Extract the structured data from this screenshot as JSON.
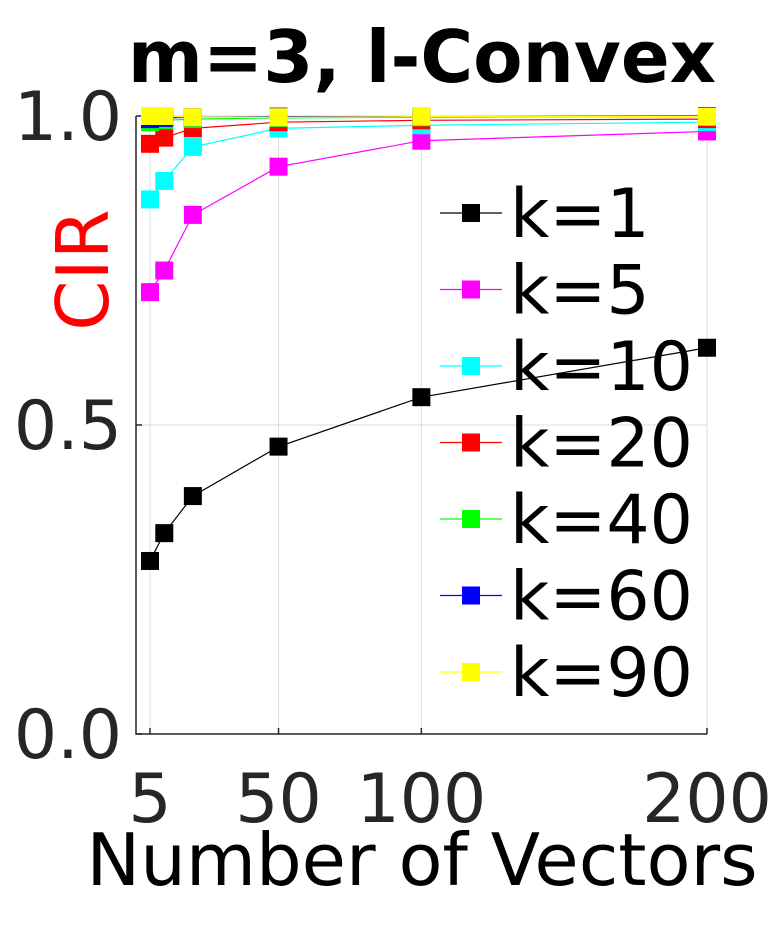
{
  "chart_data": {
    "type": "line",
    "title": "m=3, l-Convex",
    "xlabel": "Number of Vectors",
    "ylabel": "CIR",
    "x": [
      5,
      10,
      20,
      50,
      100,
      200
    ],
    "xticks": [
      5,
      50,
      100,
      200
    ],
    "xtick_labels": [
      "5",
      "50",
      "100",
      "200"
    ],
    "yticks": [
      0.0,
      0.5,
      1.0
    ],
    "ytick_labels": [
      "0.0",
      "0.5",
      "1.0"
    ],
    "xlim": [
      0,
      200
    ],
    "ylim": [
      0,
      1
    ],
    "grid": true,
    "legend_position": "right-center",
    "series": [
      {
        "name": "k=1",
        "color": "#000000",
        "values": [
          0.28,
          0.325,
          0.385,
          0.465,
          0.545,
          0.625
        ]
      },
      {
        "name": "k=5",
        "color": "#ff00ff",
        "values": [
          0.715,
          0.75,
          0.84,
          0.918,
          0.96,
          0.975
        ]
      },
      {
        "name": "k=10",
        "color": "#00ffff",
        "values": [
          0.865,
          0.895,
          0.95,
          0.98,
          0.985,
          0.99
        ]
      },
      {
        "name": "k=20",
        "color": "#ff0000",
        "values": [
          0.955,
          0.965,
          0.98,
          0.99,
          0.993,
          0.995
        ]
      },
      {
        "name": "k=40",
        "color": "#00ff00",
        "values": [
          0.99,
          0.993,
          0.995,
          0.997,
          0.998,
          0.999
        ]
      },
      {
        "name": "k=60",
        "color": "#0000ff",
        "values": [
          0.995,
          0.997,
          0.998,
          0.999,
          0.999,
          1.0
        ]
      },
      {
        "name": "k=90",
        "color": "#ffff00",
        "values": [
          1.0,
          1.0,
          0.998,
          0.998,
          0.999,
          0.999
        ]
      }
    ]
  }
}
